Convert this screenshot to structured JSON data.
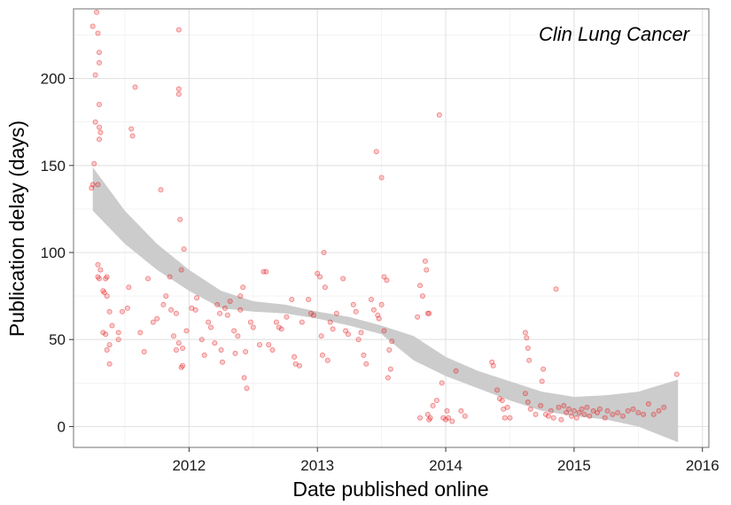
{
  "chart_data": {
    "type": "scatter",
    "title": "",
    "annotation": "Clin Lung Cancer",
    "xlabel": "Date published online",
    "ylabel": "Publication delay (days)",
    "xlim": [
      2011.1,
      2016.05
    ],
    "ylim": [
      -12,
      240
    ],
    "x_ticks": [
      2012,
      2013,
      2014,
      2015,
      2016
    ],
    "x_tick_labels": [
      "2012",
      "2013",
      "2014",
      "2015",
      "2016"
    ],
    "y_ticks": [
      0,
      50,
      100,
      150,
      200
    ],
    "y_tick_labels": [
      "0",
      "50",
      "100",
      "150",
      "200"
    ],
    "grid": true,
    "colors": {
      "points": "#e8191c",
      "band": "#cccccc",
      "panel_border": "#888888",
      "grid": "#ececec"
    },
    "point_alpha": 0.22,
    "points": [
      [
        2011.25,
        230
      ],
      [
        2011.28,
        238
      ],
      [
        2011.29,
        226
      ],
      [
        2011.3,
        215
      ],
      [
        2011.3,
        209
      ],
      [
        2011.27,
        202
      ],
      [
        2011.3,
        185
      ],
      [
        2011.27,
        175
      ],
      [
        2011.3,
        172
      ],
      [
        2011.31,
        169
      ],
      [
        2011.3,
        165
      ],
      [
        2011.26,
        151
      ],
      [
        2011.25,
        139
      ],
      [
        2011.29,
        139
      ],
      [
        2011.24,
        137
      ],
      [
        2011.29,
        93
      ],
      [
        2011.31,
        90
      ],
      [
        2011.29,
        86
      ],
      [
        2011.3,
        85
      ],
      [
        2011.34,
        77
      ],
      [
        2011.35,
        85
      ],
      [
        2011.33,
        78
      ],
      [
        2011.36,
        75
      ],
      [
        2011.36,
        86
      ],
      [
        2011.38,
        66
      ],
      [
        2011.38,
        47
      ],
      [
        2011.36,
        44
      ],
      [
        2011.38,
        36
      ],
      [
        2011.33,
        54
      ],
      [
        2011.35,
        53
      ],
      [
        2011.4,
        58
      ],
      [
        2011.45,
        50
      ],
      [
        2011.45,
        54
      ],
      [
        2011.48,
        66
      ],
      [
        2011.52,
        68
      ],
      [
        2011.53,
        80
      ],
      [
        2011.55,
        171
      ],
      [
        2011.56,
        167
      ],
      [
        2011.58,
        195
      ],
      [
        2011.62,
        54
      ],
      [
        2011.65,
        43
      ],
      [
        2011.68,
        85
      ],
      [
        2011.72,
        60
      ],
      [
        2011.75,
        62
      ],
      [
        2011.78,
        136
      ],
      [
        2011.8,
        70
      ],
      [
        2011.82,
        75
      ],
      [
        2011.85,
        86
      ],
      [
        2011.86,
        67
      ],
      [
        2011.88,
        52
      ],
      [
        2011.9,
        65
      ],
      [
        2011.92,
        228
      ],
      [
        2011.92,
        194
      ],
      [
        2011.92,
        191
      ],
      [
        2011.93,
        119
      ],
      [
        2011.94,
        90
      ],
      [
        2011.96,
        102
      ],
      [
        2011.92,
        48
      ],
      [
        2011.9,
        44
      ],
      [
        2011.95,
        45
      ],
      [
        2011.94,
        34
      ],
      [
        2011.95,
        35
      ],
      [
        2011.98,
        55
      ],
      [
        2012.02,
        68
      ],
      [
        2012.05,
        67
      ],
      [
        2012.06,
        74
      ],
      [
        2012.1,
        50
      ],
      [
        2012.12,
        41
      ],
      [
        2012.15,
        60
      ],
      [
        2012.17,
        57
      ],
      [
        2012.2,
        48
      ],
      [
        2012.22,
        70
      ],
      [
        2012.24,
        65
      ],
      [
        2012.25,
        44
      ],
      [
        2012.26,
        37
      ],
      [
        2012.28,
        68
      ],
      [
        2012.3,
        64
      ],
      [
        2012.32,
        72
      ],
      [
        2012.35,
        55
      ],
      [
        2012.36,
        42
      ],
      [
        2012.38,
        52
      ],
      [
        2012.4,
        75
      ],
      [
        2012.4,
        67
      ],
      [
        2012.42,
        80
      ],
      [
        2012.43,
        28
      ],
      [
        2012.44,
        43
      ],
      [
        2012.45,
        22
      ],
      [
        2012.48,
        60
      ],
      [
        2012.5,
        57
      ],
      [
        2012.55,
        47
      ],
      [
        2012.58,
        89
      ],
      [
        2012.6,
        89
      ],
      [
        2012.62,
        47
      ],
      [
        2012.65,
        44
      ],
      [
        2012.68,
        60
      ],
      [
        2012.7,
        57
      ],
      [
        2012.72,
        56
      ],
      [
        2012.76,
        63
      ],
      [
        2012.8,
        73
      ],
      [
        2012.82,
        40
      ],
      [
        2012.83,
        36
      ],
      [
        2012.86,
        35
      ],
      [
        2012.88,
        60
      ],
      [
        2012.93,
        73
      ],
      [
        2012.95,
        65
      ],
      [
        2012.97,
        64
      ],
      [
        2013.0,
        88
      ],
      [
        2013.02,
        86
      ],
      [
        2013.03,
        52
      ],
      [
        2013.04,
        41
      ],
      [
        2013.05,
        100
      ],
      [
        2013.06,
        80
      ],
      [
        2013.08,
        38
      ],
      [
        2013.1,
        60
      ],
      [
        2013.12,
        56
      ],
      [
        2013.15,
        65
      ],
      [
        2013.2,
        85
      ],
      [
        2013.22,
        55
      ],
      [
        2013.24,
        53
      ],
      [
        2013.28,
        70
      ],
      [
        2013.3,
        66
      ],
      [
        2013.32,
        50
      ],
      [
        2013.34,
        54
      ],
      [
        2013.36,
        41
      ],
      [
        2013.38,
        36
      ],
      [
        2013.42,
        73
      ],
      [
        2013.44,
        67
      ],
      [
        2013.46,
        158
      ],
      [
        2013.47,
        64
      ],
      [
        2013.48,
        62
      ],
      [
        2013.5,
        143
      ],
      [
        2013.5,
        70
      ],
      [
        2013.52,
        86
      ],
      [
        2013.54,
        84
      ],
      [
        2013.52,
        55
      ],
      [
        2013.56,
        44
      ],
      [
        2013.55,
        28
      ],
      [
        2013.57,
        33
      ],
      [
        2013.58,
        49
      ],
      [
        2013.78,
        63
      ],
      [
        2013.8,
        81
      ],
      [
        2013.82,
        75
      ],
      [
        2013.84,
        95
      ],
      [
        2013.85,
        90
      ],
      [
        2013.86,
        65
      ],
      [
        2013.87,
        65
      ],
      [
        2013.8,
        5
      ],
      [
        2013.86,
        7
      ],
      [
        2013.87,
        4
      ],
      [
        2013.88,
        5
      ],
      [
        2013.9,
        12
      ],
      [
        2013.93,
        15
      ],
      [
        2013.95,
        179
      ],
      [
        2013.97,
        25
      ],
      [
        2013.98,
        5
      ],
      [
        2014.0,
        4
      ],
      [
        2014.01,
        9
      ],
      [
        2014.02,
        5
      ],
      [
        2014.05,
        3
      ],
      [
        2014.08,
        32
      ],
      [
        2014.12,
        9
      ],
      [
        2014.15,
        6
      ],
      [
        2014.36,
        37
      ],
      [
        2014.37,
        35
      ],
      [
        2014.4,
        21
      ],
      [
        2014.42,
        16
      ],
      [
        2014.44,
        15
      ],
      [
        2014.45,
        10
      ],
      [
        2014.46,
        5
      ],
      [
        2014.48,
        11
      ],
      [
        2014.5,
        5
      ],
      [
        2014.62,
        54
      ],
      [
        2014.63,
        51
      ],
      [
        2014.64,
        45
      ],
      [
        2014.65,
        38
      ],
      [
        2014.62,
        19
      ],
      [
        2014.64,
        14
      ],
      [
        2014.66,
        10
      ],
      [
        2014.7,
        7
      ],
      [
        2014.74,
        12
      ],
      [
        2014.75,
        26
      ],
      [
        2014.76,
        33
      ],
      [
        2014.78,
        7
      ],
      [
        2014.8,
        6
      ],
      [
        2014.82,
        9
      ],
      [
        2014.84,
        5
      ],
      [
        2014.86,
        79
      ],
      [
        2014.88,
        11
      ],
      [
        2014.9,
        4
      ],
      [
        2014.92,
        12
      ],
      [
        2014.94,
        8
      ],
      [
        2014.96,
        10
      ],
      [
        2014.98,
        6
      ],
      [
        2015.0,
        9
      ],
      [
        2015.02,
        5
      ],
      [
        2015.04,
        8
      ],
      [
        2015.06,
        10
      ],
      [
        2015.08,
        7
      ],
      [
        2015.1,
        11
      ],
      [
        2015.12,
        6
      ],
      [
        2015.15,
        9
      ],
      [
        2015.18,
        8
      ],
      [
        2015.2,
        10
      ],
      [
        2015.24,
        5
      ],
      [
        2015.26,
        9
      ],
      [
        2015.3,
        7
      ],
      [
        2015.34,
        8
      ],
      [
        2015.38,
        6
      ],
      [
        2015.42,
        9
      ],
      [
        2015.46,
        10
      ],
      [
        2015.5,
        8
      ],
      [
        2015.54,
        7
      ],
      [
        2015.58,
        13
      ],
      [
        2015.62,
        7
      ],
      [
        2015.66,
        9
      ],
      [
        2015.7,
        11
      ],
      [
        2015.8,
        30
      ]
    ],
    "smooth": {
      "x": [
        2011.25,
        2011.5,
        2011.75,
        2012.0,
        2012.25,
        2012.5,
        2012.75,
        2013.0,
        2013.25,
        2013.5,
        2013.75,
        2014.0,
        2014.25,
        2014.5,
        2014.75,
        2015.0,
        2015.25,
        2015.5,
        2015.81
      ],
      "upper": [
        149,
        124,
        105,
        90,
        78,
        72,
        70,
        66,
        63,
        58,
        52,
        40,
        32,
        26,
        20,
        17,
        18,
        20,
        27
      ],
      "lower": [
        124,
        105,
        90,
        78,
        68,
        66,
        65,
        62,
        58,
        53,
        38,
        29,
        22,
        15,
        9,
        6,
        4,
        0,
        -9
      ]
    }
  }
}
